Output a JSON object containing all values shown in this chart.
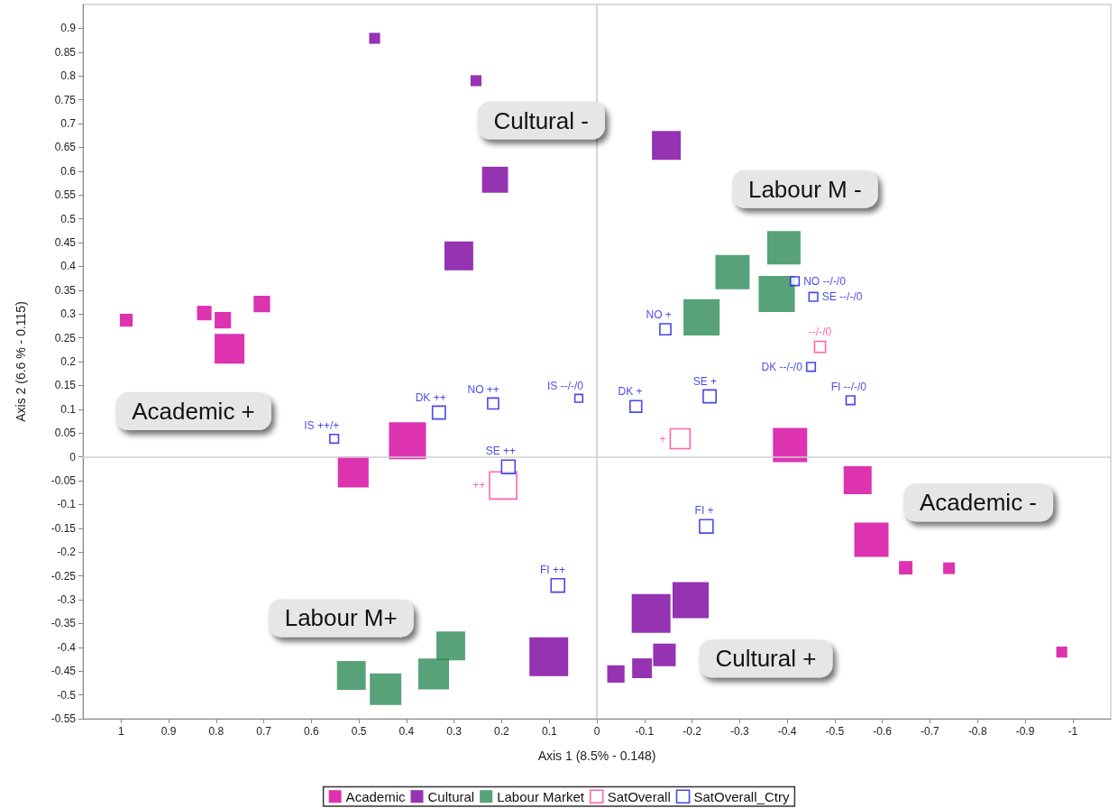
{
  "chart_data": {
    "type": "bubble",
    "xlabel": "Axis 1 (8.5% - 0.148)",
    "ylabel": "Axis 2 (6.6 % - 0.115)",
    "xlim": [
      1.08,
      -1.08
    ],
    "xticks": [
      1,
      0.9,
      0.8,
      0.7,
      0.6,
      0.5,
      0.4,
      0.3,
      0.2,
      0.1,
      0,
      -0.1,
      -0.2,
      -0.3,
      -0.4,
      -0.5,
      -0.6,
      -0.7,
      -0.8,
      -0.9,
      -1
    ],
    "ylim": [
      -0.55,
      0.95
    ],
    "yticks": [
      -0.55,
      -0.5,
      -0.45,
      -0.4,
      -0.35,
      -0.3,
      -0.25,
      -0.2,
      -0.15,
      -0.1,
      -0.05,
      0,
      0.05,
      0.1,
      0.15,
      0.2,
      0.25,
      0.3,
      0.35,
      0.4,
      0.45,
      0.5,
      0.55,
      0.6,
      0.65,
      0.7,
      0.75,
      0.8,
      0.85,
      0.9
    ],
    "grid": false,
    "legend": "bottom",
    "marker": "square",
    "ref_lines": [
      {
        "axis": "x",
        "value": 0,
        "label": null,
        "color": "#c8c8c8"
      },
      {
        "axis": "y",
        "value": 0,
        "label": null,
        "color": "#d0d0d0"
      }
    ],
    "annotations": [
      "Cultural -",
      "Labour M -",
      "Academic +",
      "Academic -",
      "Labour M+",
      "Cultural +"
    ],
    "series": [
      {
        "name": "Academic",
        "color": "#d4009e",
        "x": [
          0.989,
          0.825,
          0.786,
          0.704,
          0.772,
          0.398,
          0.512,
          -0.406,
          -0.548,
          -0.577,
          -0.649,
          -0.74,
          -0.977
        ],
        "values": [
          0.287,
          0.302,
          0.287,
          0.321,
          0.227,
          0.034,
          -0.032,
          0.025,
          -0.049,
          -0.174,
          -0.233,
          -0.234,
          -0.41
        ],
        "sizes": [
          0.11,
          0.14,
          0.18,
          0.18,
          0.59,
          0.91,
          0.63,
          0.78,
          0.52,
          0.78,
          0.12,
          0.09,
          0.08
        ]
      },
      {
        "name": "Cultural",
        "color": "#7a00a0",
        "x": [
          0.467,
          0.254,
          -0.146,
          0.214,
          0.29,
          0.101,
          -0.114,
          -0.197,
          -0.04,
          -0.095,
          -0.142
        ],
        "values": [
          0.879,
          0.79,
          0.654,
          0.582,
          0.422,
          -0.42,
          -0.329,
          -0.301,
          -0.456,
          -0.444,
          -0.416
        ],
        "sizes": [
          0.08,
          0.08,
          0.55,
          0.45,
          0.55,
          1,
          1,
          0.87,
          0.2,
          0.26,
          0.34
        ]
      },
      {
        "name": "Labour Market",
        "color": "#2e8b57",
        "x": [
          -0.393,
          -0.285,
          -0.378,
          -0.22,
          0.516,
          0.444,
          0.343,
          0.307
        ],
        "values": [
          0.439,
          0.388,
          0.342,
          0.293,
          -0.459,
          -0.488,
          -0.456,
          -0.397
        ],
        "sizes": [
          0.74,
          0.78,
          0.87,
          0.87,
          0.55,
          0.66,
          0.63,
          0.55
        ]
      },
      {
        "name": "SatOverall",
        "color": "#ff3d96",
        "x": [
          0.197,
          -0.175,
          -0.469
        ],
        "values": [
          -0.06,
          0.038,
          0.231
        ],
        "sizes": [
          0.49,
          0.26,
          0.08
        ],
        "value_labels": [
          "++",
          "+",
          "--/-/0"
        ]
      },
      {
        "name": "SatOverall_Ctry",
        "color": "#1a1ae6",
        "x": [
          0.552,
          0.332,
          0.218,
          0.186,
          0.038,
          -0.082,
          -0.144,
          -0.237,
          -0.23,
          0.082,
          -0.416,
          -0.455,
          -0.45,
          -0.533
        ],
        "values": [
          0.038,
          0.093,
          0.112,
          -0.021,
          0.123,
          0.106,
          0.268,
          0.127,
          -0.146,
          -0.27,
          0.369,
          0.336,
          0.189,
          0.119
        ],
        "sizes": [
          0.05,
          0.11,
          0.08,
          0.12,
          0.04,
          0.09,
          0.08,
          0.11,
          0.12,
          0.12,
          0.05,
          0.05,
          0.05,
          0.05
        ],
        "value_labels": [
          "IS ++/+",
          "DK ++",
          "NO ++",
          "SE ++",
          "IS --/-/0",
          "DK +",
          "NO +",
          "SE +",
          "FI +",
          "FI ++",
          "NO --/-/0",
          "SE --/-/0",
          "DK --/-/0",
          "FI --/-/0"
        ]
      }
    ]
  }
}
